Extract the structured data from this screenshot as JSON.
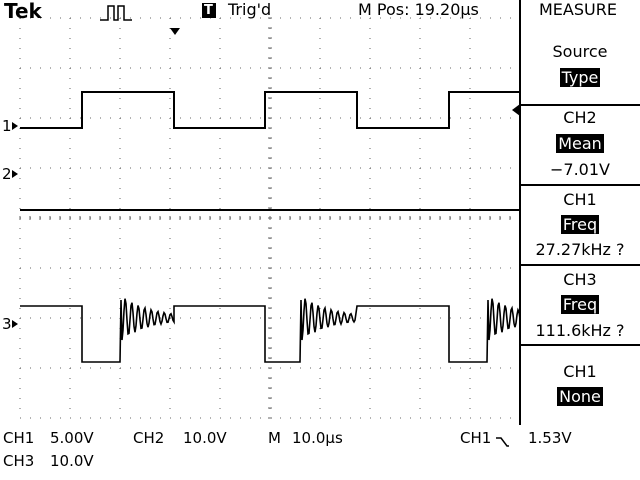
{
  "header": {
    "brand": "Tek",
    "trigger_icon": "T",
    "trigger_status": "Trig'd",
    "position": "M Pos: 19.20µs",
    "menu_title": "MEASURE"
  },
  "menu": [
    {
      "label": "Source",
      "selected": "Type"
    },
    {
      "label": "CH2",
      "selected": "Mean",
      "reading": "−7.01V"
    },
    {
      "label": "CH1",
      "selected": "Freq",
      "reading": "27.27kHz ?"
    },
    {
      "label": "CH3",
      "selected": "Freq",
      "reading": "111.6kHz ?"
    },
    {
      "label": "CH1",
      "selected": "None"
    }
  ],
  "channel_markers": [
    "1",
    "2",
    "3"
  ],
  "status": {
    "ch1": {
      "label": "CH1",
      "value": "5.00V"
    },
    "ch2": {
      "label": "CH2",
      "value": "10.0V"
    },
    "time": {
      "label": "M",
      "value": "10.0µs"
    },
    "trigger": {
      "label": "CH1",
      "value": "1.53V"
    },
    "ch3": {
      "label": "CH3",
      "value": "10.0V"
    }
  }
}
